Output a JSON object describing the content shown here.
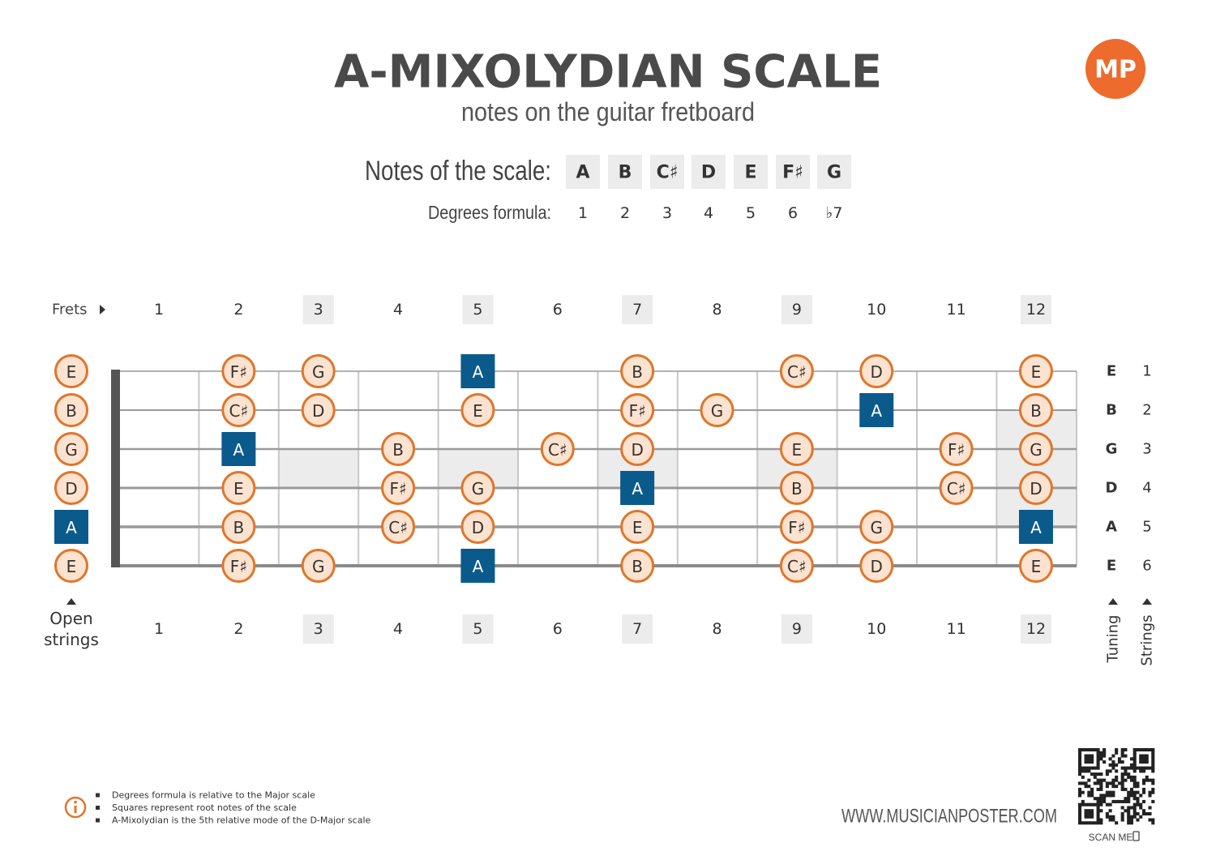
{
  "header": {
    "logo": "MP",
    "title": "A-MIXOLYDIAN SCALE",
    "subtitle": "notes on the guitar fretboard"
  },
  "scale": {
    "notes_label": "Notes of the scale:",
    "notes": [
      "A",
      "B",
      "C♯",
      "D",
      "E",
      "F♯",
      "G"
    ],
    "degrees_label": "Degrees formula:",
    "degrees": [
      "1",
      "2",
      "3",
      "4",
      "5",
      "6",
      "♭7"
    ]
  },
  "fretboard": {
    "frets_label": "Frets",
    "fret_numbers": [
      "1",
      "2",
      "3",
      "4",
      "5",
      "6",
      "7",
      "8",
      "9",
      "10",
      "11",
      "12"
    ],
    "open_strings_label": "Open strings",
    "tuning_label": "Tuning",
    "strings_label": "Strings",
    "tuning": [
      "E",
      "B",
      "G",
      "D",
      "A",
      "E"
    ],
    "string_numbers": [
      "1",
      "2",
      "3",
      "4",
      "5",
      "6"
    ],
    "strings": [
      [
        "E",
        null,
        "F♯",
        "G",
        null,
        "A",
        null,
        "B",
        null,
        "C♯",
        "D",
        null,
        "E"
      ],
      [
        "B",
        null,
        "C♯",
        "D",
        null,
        "E",
        null,
        "F♯",
        "G",
        null,
        "A",
        null,
        "B"
      ],
      [
        "G",
        null,
        "A",
        null,
        "B",
        null,
        "C♯",
        "D",
        null,
        "E",
        null,
        "F♯",
        "G"
      ],
      [
        "D",
        null,
        "E",
        null,
        "F♯",
        "G",
        null,
        "A",
        null,
        "B",
        null,
        "C♯",
        "D"
      ],
      [
        "A",
        null,
        "B",
        null,
        "C♯",
        "D",
        null,
        "E",
        null,
        "F♯",
        "G",
        null,
        "A"
      ],
      [
        "E",
        null,
        "F♯",
        "G",
        null,
        "A",
        null,
        "B",
        null,
        "C♯",
        "D",
        null,
        "E"
      ]
    ]
  },
  "footer": {
    "notes": [
      "Degrees formula is relative to the Major scale",
      "Squares represent root notes of the scale",
      "A-Mixolydian is the 5th relative mode of the D-Major scale"
    ],
    "website": "WWW.MUSICIANPOSTER.COM",
    "scan": "SCAN ME"
  }
}
